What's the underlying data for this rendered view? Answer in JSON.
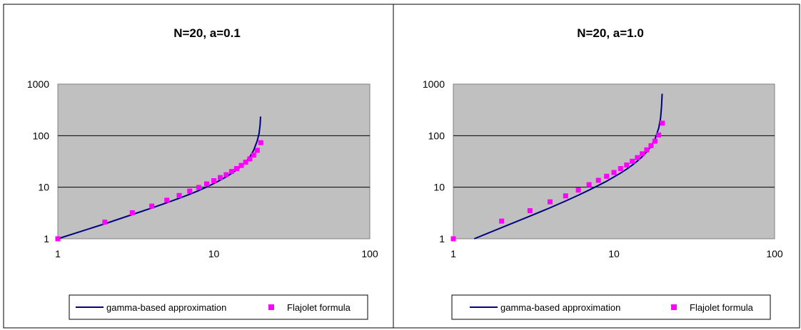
{
  "chart_data": [
    {
      "type": "line",
      "title": "N=20, a=0.1",
      "xscale": "log",
      "yscale": "log",
      "xlim": [
        1,
        100
      ],
      "ylim": [
        1,
        1000
      ],
      "xticks": [
        {
          "v": 1,
          "label": "1"
        },
        {
          "v": 10,
          "label": "10"
        },
        {
          "v": 100,
          "label": "100"
        }
      ],
      "yticks": [
        {
          "v": 1,
          "label": "1"
        },
        {
          "v": 10,
          "label": "10"
        },
        {
          "v": 100,
          "label": "100"
        },
        {
          "v": 1000,
          "label": "1000"
        }
      ],
      "grid": true,
      "plot_background": "#c0c0c0",
      "legend_position": "bottom",
      "series": [
        {
          "name": "gamma-based approximation",
          "style": "line",
          "color": "#000080",
          "x": [
            1,
            2,
            3,
            4,
            5,
            6,
            7,
            8,
            9,
            10,
            11,
            12,
            13,
            14,
            15,
            16,
            17,
            18,
            19,
            19.5,
            19.8,
            19.95
          ],
          "y": [
            1,
            1.95,
            2.95,
            3.95,
            5.0,
            6.1,
            7.3,
            8.6,
            10.1,
            11.8,
            13.7,
            15.9,
            18.5,
            21.6,
            25.6,
            31,
            38.5,
            52,
            80,
            110,
            160,
            235
          ]
        },
        {
          "name": "Flajolet formula",
          "style": "marker",
          "color": "#ff00ff",
          "x": [
            1,
            2,
            3,
            4,
            5,
            6,
            7,
            8,
            9,
            10,
            11,
            12,
            13,
            14,
            15,
            16,
            17,
            18,
            19,
            20
          ],
          "y": [
            1,
            2.1,
            3.2,
            4.3,
            5.6,
            6.9,
            8.4,
            9.9,
            11.6,
            13.4,
            15.4,
            17.5,
            20.2,
            23.0,
            26.5,
            30.5,
            35.5,
            42.0,
            52.0,
            73.0
          ]
        }
      ]
    },
    {
      "type": "line",
      "title": "N=20, a=1.0",
      "xscale": "log",
      "yscale": "log",
      "xlim": [
        1,
        100
      ],
      "ylim": [
        1,
        1000
      ],
      "xticks": [
        {
          "v": 1,
          "label": "1"
        },
        {
          "v": 10,
          "label": "10"
        },
        {
          "v": 100,
          "label": "100"
        }
      ],
      "yticks": [
        {
          "v": 1,
          "label": "1"
        },
        {
          "v": 10,
          "label": "10"
        },
        {
          "v": 100,
          "label": "100"
        },
        {
          "v": 1000,
          "label": "1000"
        }
      ],
      "grid": true,
      "plot_background": "#c0c0c0",
      "legend_position": "bottom",
      "series": [
        {
          "name": "gamma-based approximation",
          "style": "line",
          "color": "#000080",
          "x": [
            1.35,
            2,
            3,
            4,
            5,
            6,
            7,
            8,
            9,
            10,
            11,
            12,
            13,
            14,
            15,
            16,
            17,
            18,
            19,
            19.5,
            19.8,
            19.95
          ],
          "y": [
            1,
            1.65,
            2.75,
            4.0,
            5.4,
            7.0,
            8.8,
            10.8,
            13.1,
            15.8,
            18.8,
            22.4,
            26.8,
            32.2,
            39.2,
            48.5,
            62,
            85,
            140,
            220,
            380,
            650
          ]
        },
        {
          "name": "Flajolet formula",
          "style": "marker",
          "color": "#ff00ff",
          "x": [
            1,
            2,
            3,
            4,
            5,
            6,
            7,
            8,
            9,
            10,
            11,
            12,
            13,
            14,
            15,
            16,
            17,
            18,
            19,
            20
          ],
          "y": [
            1,
            2.2,
            3.5,
            5.2,
            6.8,
            8.8,
            11.2,
            13.6,
            16.3,
            19.3,
            23.0,
            27.0,
            31.8,
            37.5,
            44.5,
            53.0,
            64.0,
            78.0,
            103.0,
            175.0
          ]
        }
      ]
    }
  ]
}
